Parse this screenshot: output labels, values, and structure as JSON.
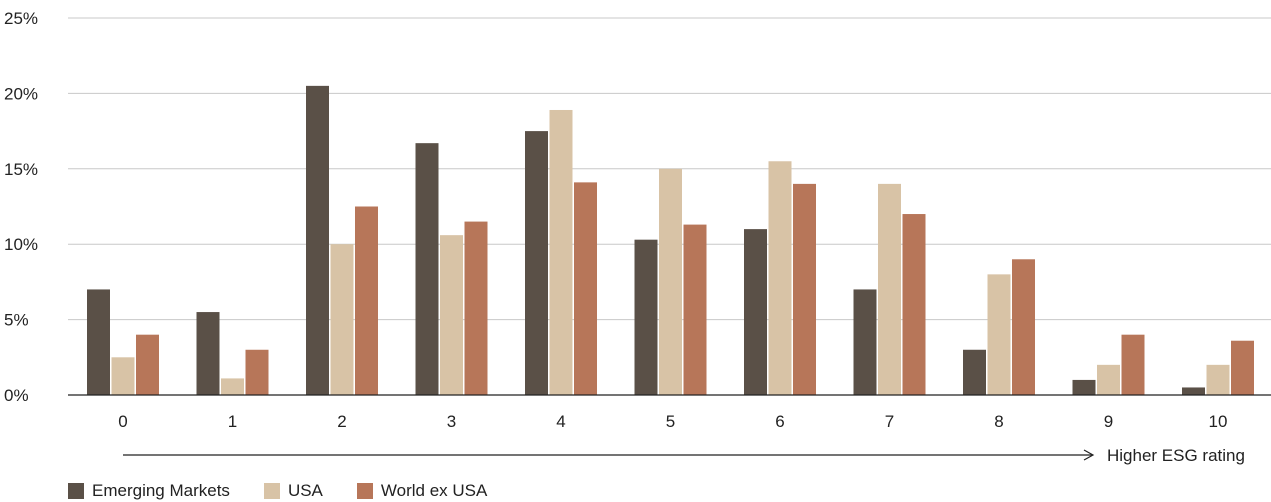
{
  "chart_data": {
    "type": "bar",
    "categories": [
      "0",
      "1",
      "2",
      "3",
      "4",
      "5",
      "6",
      "7",
      "8",
      "9",
      "10"
    ],
    "series": [
      {
        "name": "Emerging Markets",
        "color": "#5a5047",
        "values": [
          7.0,
          5.5,
          20.5,
          16.7,
          17.5,
          10.3,
          11.0,
          7.0,
          3.0,
          1.0,
          0.5
        ]
      },
      {
        "name": "USA",
        "color": "#d8c3a6",
        "values": [
          2.5,
          1.1,
          10.0,
          10.6,
          18.9,
          15.0,
          15.5,
          14.0,
          8.0,
          2.0,
          2.0
        ]
      },
      {
        "name": "World ex USA",
        "color": "#b77659",
        "values": [
          4.0,
          3.0,
          12.5,
          11.5,
          14.1,
          11.3,
          14.0,
          12.0,
          9.0,
          4.0,
          3.6
        ]
      }
    ],
    "yticks": [
      "0%",
      "5%",
      "10%",
      "15%",
      "20%",
      "25%"
    ],
    "ylim": [
      0,
      25
    ],
    "grid": true,
    "legend_position": "bottom-left",
    "annotation": "Higher ESG rating"
  }
}
